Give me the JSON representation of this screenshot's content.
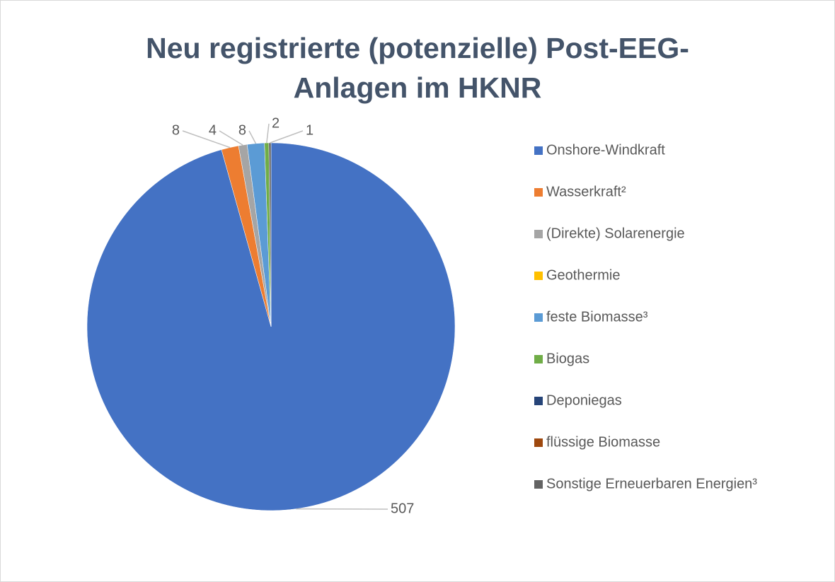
{
  "chart_data": {
    "type": "pie",
    "title": "Neu registrierte (potenzielle) Post-EEG-Anlagen im HKNR",
    "categories": [
      "Onshore-Windkraft",
      "Wasserkraft²",
      "(Direkte) Solarenergie",
      "Geothermie",
      "feste Biomasse³",
      "Biogas",
      "Deponiegas",
      "flüssige Biomasse",
      "Sonstige Erneuerbaren Energien³"
    ],
    "values": [
      507,
      8,
      4,
      0,
      8,
      2,
      0,
      0,
      1
    ],
    "colors": [
      "#4472c4",
      "#ed7d31",
      "#a5a5a5",
      "#ffc000",
      "#5b9bd5",
      "#70ad47",
      "#264478",
      "#9e480e",
      "#636363"
    ],
    "legend": "right"
  }
}
